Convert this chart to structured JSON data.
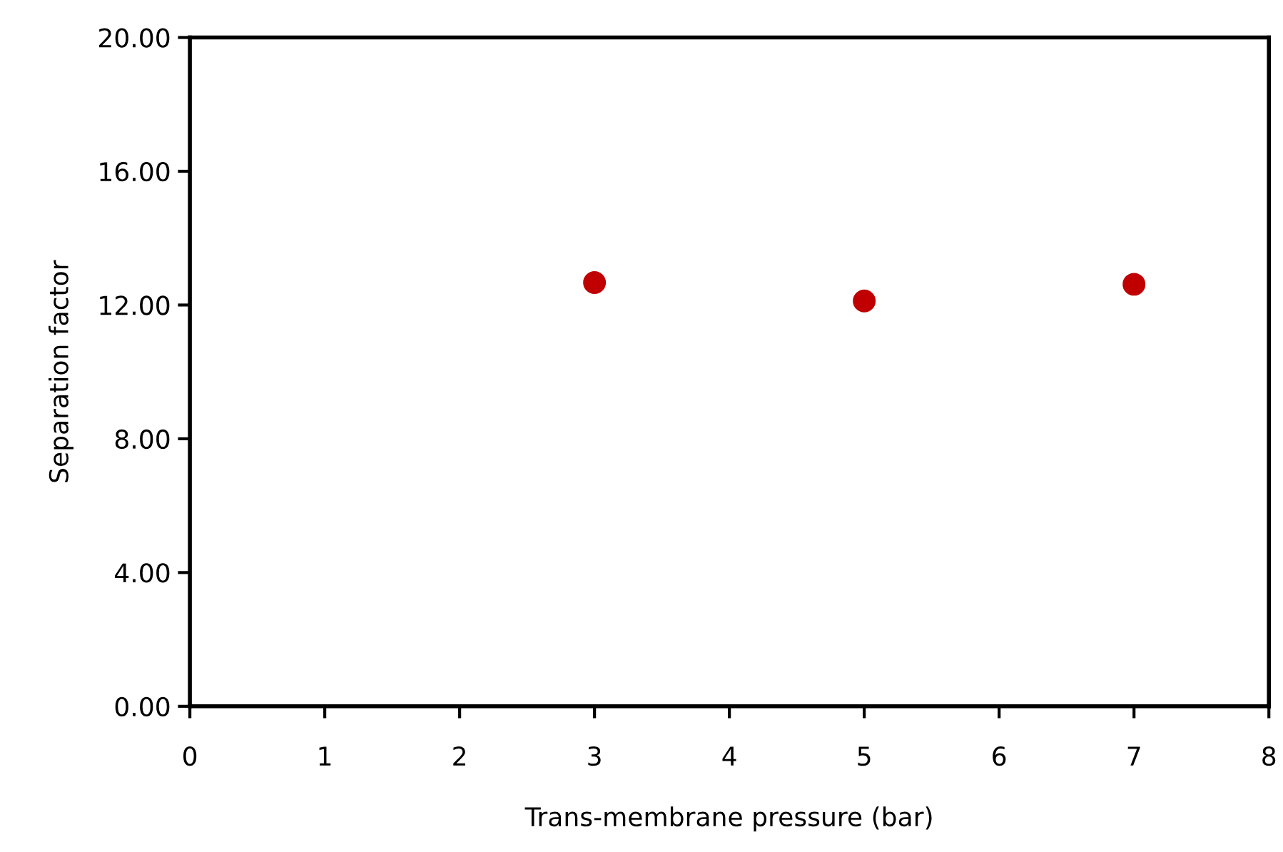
{
  "chart_data": {
    "type": "scatter",
    "xlabel": "Trans-membrane pressure (bar)",
    "ylabel": "Separation factor",
    "x": [
      3,
      5,
      7
    ],
    "series": [
      {
        "color": "#c00000",
        "values": [
          12.67,
          12.12,
          12.62
        ]
      }
    ],
    "marker": "circle",
    "xlim": [
      0,
      8
    ],
    "xticks": [
      0,
      1,
      2,
      3,
      4,
      5,
      6,
      7,
      8
    ],
    "ylim": [
      0,
      20
    ],
    "yticks": [
      {
        "value": 0,
        "label": "0.00"
      },
      {
        "value": 4,
        "label": "4.00"
      },
      {
        "value": 8,
        "label": "8.00"
      },
      {
        "value": 12,
        "label": "12.00"
      },
      {
        "value": 16,
        "label": "16.00"
      },
      {
        "value": 20,
        "label": "20.00"
      }
    ],
    "grid": false,
    "legend": false
  }
}
